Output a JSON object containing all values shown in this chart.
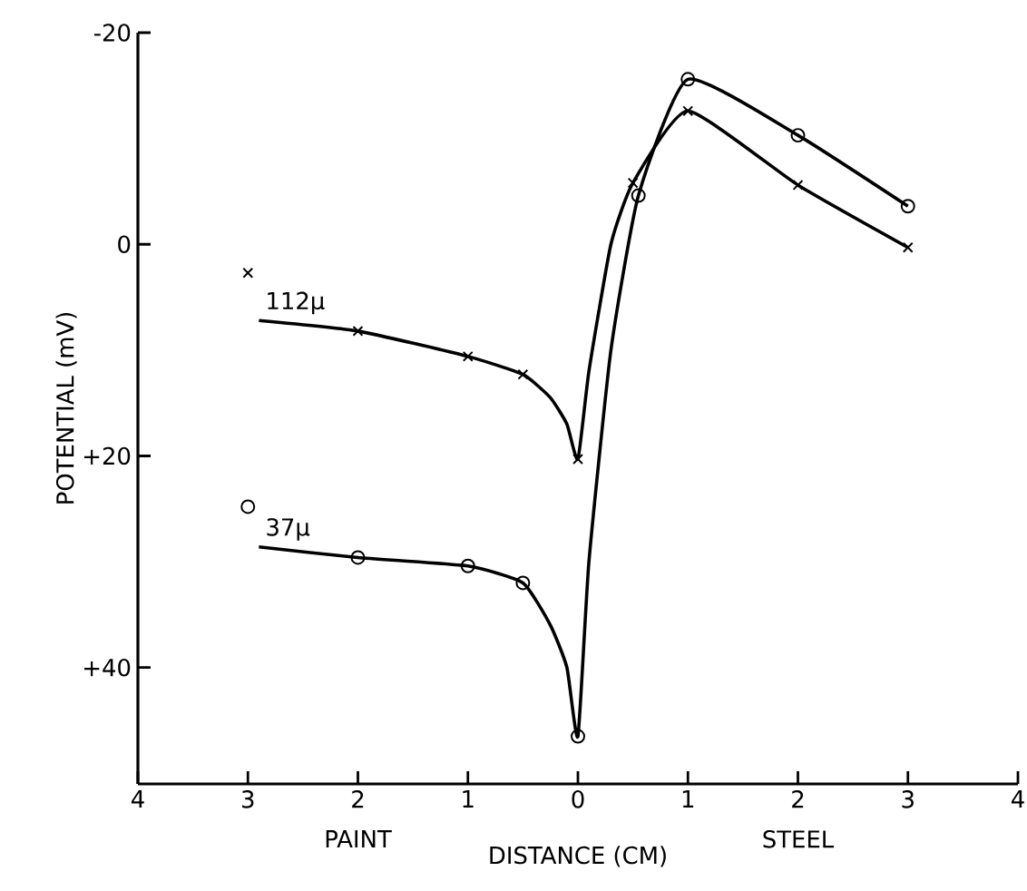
{
  "chart_data": {
    "type": "line",
    "xlabel": "DISTANCE (CM)",
    "ylabel": "POTENTIAL (mV)",
    "annotations": [
      "PAINT",
      "STEEL"
    ],
    "xlim": [
      -4,
      4
    ],
    "xticks": [
      {
        "value": -4,
        "label": "4"
      },
      {
        "value": -3,
        "label": "3"
      },
      {
        "value": -2,
        "label": "2"
      },
      {
        "value": -1,
        "label": "1"
      },
      0,
      1,
      2,
      3,
      4
    ],
    "ylim": [
      51,
      -20
    ],
    "yticks": [
      {
        "value": -20,
        "label": "-20"
      },
      0,
      {
        "value": 20,
        "label": "+20"
      },
      {
        "value": 40,
        "label": "+40"
      }
    ],
    "series": [
      {
        "name": "112μ",
        "type": "line",
        "color": "#000000",
        "marker": "none",
        "line_style": "solid",
        "x": [
          -2.9,
          -2,
          -1,
          -0.5,
          -0.25,
          -0.1,
          0,
          0.1,
          0.3,
          0.5,
          1,
          2,
          3
        ],
        "values": [
          7.2,
          8.2,
          10.6,
          12.3,
          14.5,
          17,
          20.3,
          12,
          0,
          -5.8,
          -12.6,
          -5.6,
          0.3
        ]
      },
      {
        "type": "scatter",
        "color": "#000000",
        "marker": "cross",
        "x": [
          -3,
          -2,
          -1,
          -0.5,
          0,
          0.5,
          1,
          2,
          3
        ],
        "values": [
          2.7,
          8.2,
          10.6,
          12.3,
          20.3,
          -5.8,
          -12.6,
          -5.6,
          0.3
        ]
      },
      {
        "name": "37μ",
        "type": "line",
        "color": "#000000",
        "marker": "none",
        "line_style": "solid",
        "x": [
          -2.9,
          -2,
          -1,
          -0.5,
          -0.25,
          -0.1,
          0,
          0.1,
          0.3,
          0.55,
          1,
          2,
          3
        ],
        "values": [
          28.6,
          29.6,
          30.4,
          32,
          36,
          40,
          46.5,
          30,
          10,
          -4.6,
          -15.6,
          -10.3,
          -3.6
        ]
      },
      {
        "type": "scatter",
        "color": "#000000",
        "marker": "circle",
        "x": [
          -3,
          -2,
          -1,
          -0.5,
          0,
          0.55,
          1,
          2,
          3
        ],
        "values": [
          24.8,
          29.6,
          30.4,
          32,
          46.5,
          -4.6,
          -15.6,
          -10.3,
          -3.6
        ]
      }
    ]
  }
}
